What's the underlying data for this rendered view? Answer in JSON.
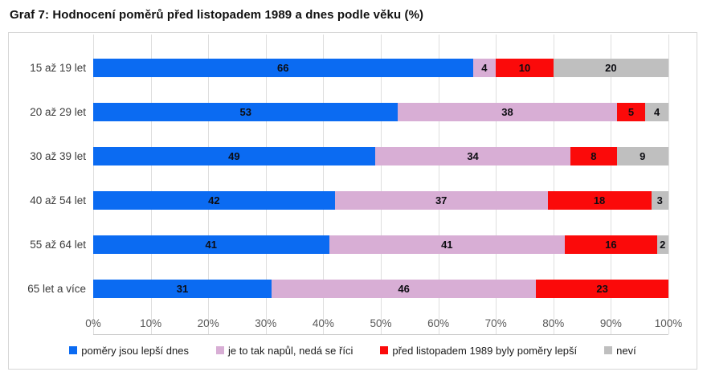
{
  "title": "Graf 7: Hodnocení poměrů před listopadem 1989 a dnes podle věku (%)",
  "chart_data": {
    "type": "bar",
    "orientation": "horizontal",
    "stacked": true,
    "title": "Graf 7: Hodnocení poměrů před listopadem 1989 a dnes podle věku (%)",
    "categories": [
      "15 až 19 let",
      "20 až 29 let",
      "30 až 39 let",
      "40 až 54 let",
      "55 až 64 let",
      "65 let a více"
    ],
    "series": [
      {
        "name": "poměry jsou lepší dnes",
        "color": "#0b6bf2",
        "values": [
          66,
          53,
          49,
          42,
          41,
          31
        ]
      },
      {
        "name": "je to tak napůl, nedá se říci",
        "color": "#d8aed5",
        "values": [
          4,
          38,
          34,
          37,
          41,
          46
        ]
      },
      {
        "name": "před listopadem 1989 byly poměry lepší",
        "color": "#fb0a0a",
        "values": [
          10,
          5,
          8,
          18,
          16,
          23
        ]
      },
      {
        "name": "neví",
        "color": "#bfbfbf",
        "values": [
          20,
          4,
          9,
          3,
          2,
          0
        ]
      }
    ],
    "x_ticks": [
      "0%",
      "10%",
      "20%",
      "30%",
      "40%",
      "50%",
      "60%",
      "70%",
      "80%",
      "90%",
      "100%"
    ],
    "xlim": [
      0,
      100
    ],
    "grid": "vertical",
    "legend_position": "bottom",
    "value_labels": true,
    "colors_meta": {
      "gridline": "#dedede",
      "axis_line": "#c9c9c9",
      "tick_text": "#595959",
      "box_border": "#d6d6d6",
      "value_text": "#0d0d12"
    }
  }
}
